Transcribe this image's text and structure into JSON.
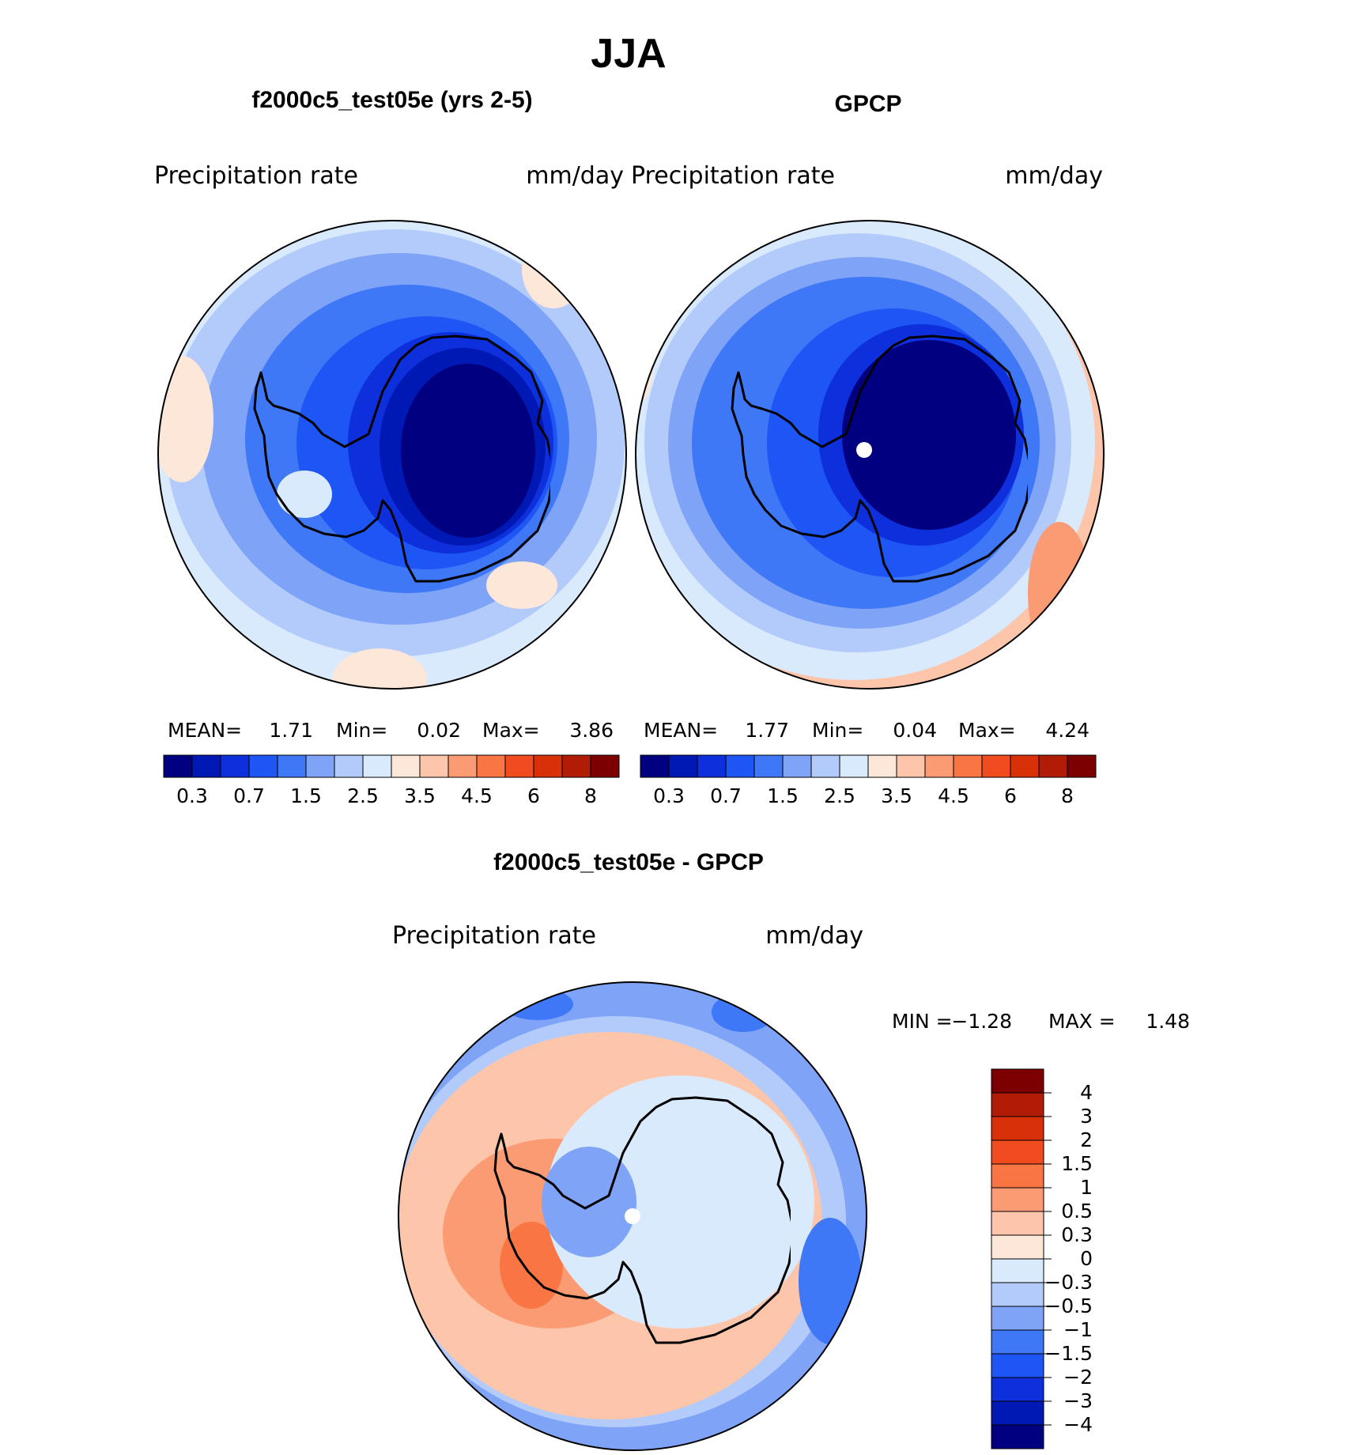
{
  "figure": {
    "season": "JJA",
    "palette_min_to_max": [
      "#000080",
      "#0018b4",
      "#0d30dc",
      "#1e55f5",
      "#3f78f6",
      "#7fa4f7",
      "#b3cbfa",
      "#daeafd",
      "#fde7d8",
      "#fdc5aa",
      "#fb9b73",
      "#f97543",
      "#f14c20",
      "#d83109",
      "#b01c05",
      "#7d0000"
    ]
  },
  "panels": [
    {
      "title": "f2000c5_test05e (yrs 2-5)",
      "variable": "Precipitation  rate",
      "units": "mm/day",
      "stats": {
        "mean_label": "MEAN=",
        "mean": "1.71",
        "min_label": "Min=",
        "min": "0.02",
        "max_label": "Max=",
        "max": "3.86"
      }
    },
    {
      "title": "GPCP",
      "variable": "Precipitation  rate",
      "units": "mm/day",
      "stats": {
        "mean_label": "MEAN=",
        "mean": "1.77",
        "min_label": "Min=",
        "min": "0.04",
        "max_label": "Max=",
        "max": "4.24"
      }
    }
  ],
  "colorbar_top": {
    "ticks": [
      "0.3",
      "0.7",
      "1.5",
      "2.5",
      "3.5",
      "4.5",
      "6",
      "8"
    ]
  },
  "difference": {
    "title": "f2000c5_test05e - GPCP",
    "variable": "Precipitation  rate",
    "units": "mm/day",
    "stats": {
      "min_label": "MIN =",
      "min": "−1.28",
      "max_label": "MAX =",
      "max": "1.48"
    },
    "colorbar_labels_top_to_bottom": [
      "4",
      "3",
      "2",
      "1.5",
      "1",
      "0.5",
      "0.3",
      "0",
      "−0.3",
      "−0.5",
      "−1",
      "−1.5",
      "−2",
      "−3",
      "−4"
    ]
  }
}
